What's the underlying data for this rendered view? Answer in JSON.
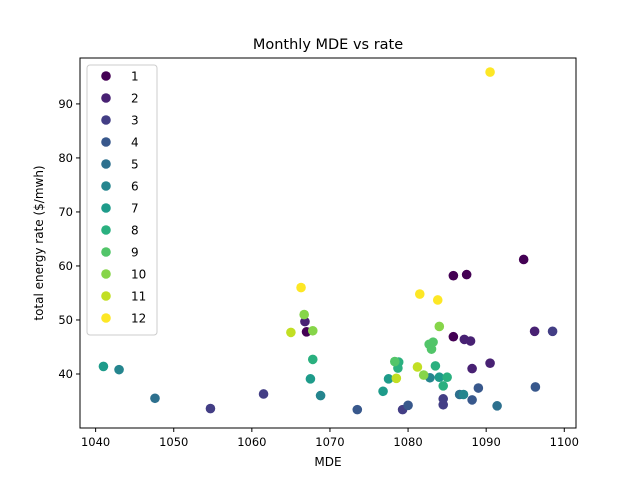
{
  "chart_data": {
    "type": "scatter",
    "title": "Monthly MDE vs rate",
    "xlabel": "MDE",
    "ylabel": "total energy rate ($/mwh)",
    "xlim": [
      1038,
      1101.5
    ],
    "ylim": [
      30,
      98.5
    ],
    "xticks": [
      1040,
      1050,
      1060,
      1070,
      1080,
      1090,
      1100
    ],
    "yticks": [
      40,
      50,
      60,
      70,
      80,
      90
    ],
    "grid": false,
    "legend_position": "top-left",
    "colormap": "viridis",
    "series": [
      {
        "name": "1",
        "color": "#440154",
        "points": [
          [
            1085.8,
            58.2
          ],
          [
            1087.5,
            58.4
          ],
          [
            1094.8,
            61.2
          ],
          [
            1085.8,
            46.9
          ],
          [
            1067.0,
            47.8
          ]
        ]
      },
      {
        "name": "2",
        "color": "#482173",
        "points": [
          [
            1066.8,
            49.7
          ],
          [
            1087.2,
            46.4
          ],
          [
            1088.0,
            46.1
          ],
          [
            1096.2,
            47.9
          ],
          [
            1090.5,
            42.0
          ],
          [
            1088.2,
            41.0
          ]
        ]
      },
      {
        "name": "3",
        "color": "#433e85",
        "points": [
          [
            1098.5,
            47.9
          ],
          [
            1061.5,
            36.3
          ],
          [
            1054.7,
            33.6
          ],
          [
            1079.3,
            33.4
          ],
          [
            1084.5,
            35.4
          ],
          [
            1084.5,
            34.3
          ]
        ]
      },
      {
        "name": "4",
        "color": "#38588c",
        "points": [
          [
            1088.2,
            35.2
          ],
          [
            1089.0,
            37.4
          ],
          [
            1096.3,
            37.6
          ],
          [
            1073.5,
            33.4
          ],
          [
            1080.0,
            34.2
          ]
        ]
      },
      {
        "name": "5",
        "color": "#2d708e",
        "points": [
          [
            1047.6,
            35.5
          ],
          [
            1091.4,
            34.1
          ],
          [
            1086.6,
            36.2
          ]
        ]
      },
      {
        "name": "6",
        "color": "#25858e",
        "points": [
          [
            1043.0,
            40.8
          ],
          [
            1068.8,
            36.0
          ],
          [
            1082.8,
            39.3
          ],
          [
            1087.1,
            36.2
          ]
        ]
      },
      {
        "name": "7",
        "color": "#1e9b8a",
        "points": [
          [
            1041.0,
            41.4
          ],
          [
            1067.5,
            39.1
          ],
          [
            1077.5,
            39.1
          ],
          [
            1076.8,
            36.8
          ],
          [
            1084.0,
            39.4
          ]
        ]
      },
      {
        "name": "8",
        "color": "#2ab07f",
        "points": [
          [
            1067.8,
            42.7
          ],
          [
            1078.8,
            42.2
          ],
          [
            1083.5,
            41.5
          ],
          [
            1084.5,
            37.8
          ],
          [
            1085.0,
            39.4
          ],
          [
            1078.7,
            41.1
          ]
        ]
      },
      {
        "name": "9",
        "color": "#52c569",
        "points": [
          [
            1083.2,
            45.9
          ],
          [
            1082.7,
            45.5
          ],
          [
            1083.0,
            44.6
          ],
          [
            1078.3,
            42.3
          ]
        ]
      },
      {
        "name": "10",
        "color": "#86d549",
        "points": [
          [
            1066.7,
            51.0
          ],
          [
            1067.8,
            48.0
          ],
          [
            1084.0,
            48.8
          ],
          [
            1082.0,
            39.8
          ]
        ]
      },
      {
        "name": "11",
        "color": "#c2df23",
        "points": [
          [
            1065.0,
            47.7
          ],
          [
            1081.2,
            41.3
          ],
          [
            1078.5,
            39.2
          ]
        ]
      },
      {
        "name": "12",
        "color": "#fde725",
        "points": [
          [
            1090.5,
            95.9
          ],
          [
            1066.3,
            56.0
          ],
          [
            1081.5,
            54.8
          ],
          [
            1083.8,
            53.7
          ]
        ]
      }
    ]
  }
}
